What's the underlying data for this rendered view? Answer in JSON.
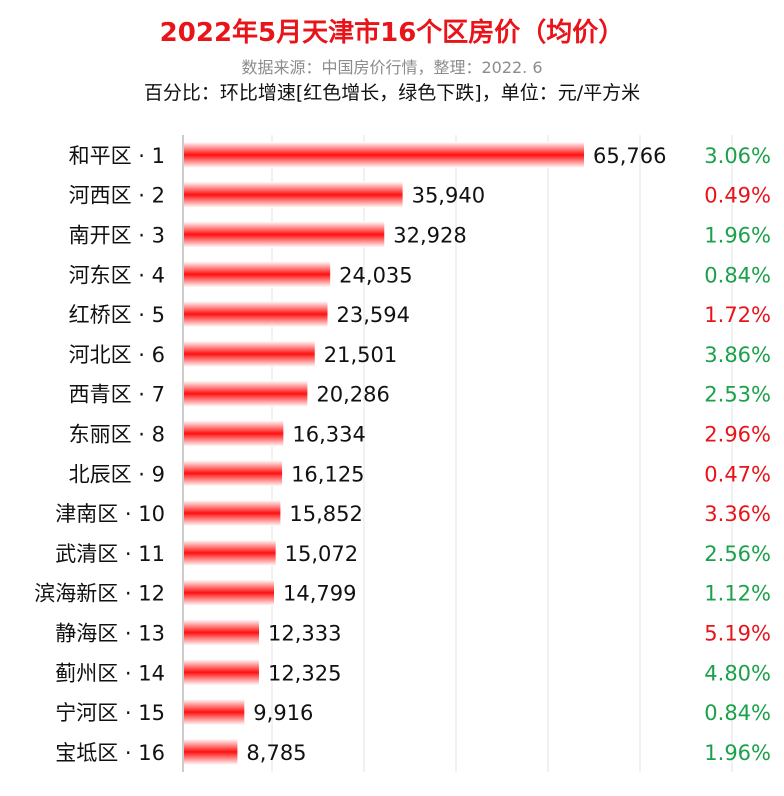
{
  "header": {
    "title": "2022年5月天津市16个区房价（均价）",
    "source": "数据来源：中国房价行情，整理：2022. 6",
    "note": "百分比：环比增速[红色增长，绿色下跌]，单位：元/平方米"
  },
  "colors": {
    "up": "#e8141a",
    "down": "#1aa14a",
    "bar": "#ff1a1a",
    "text": "#111111"
  },
  "chart_data": {
    "type": "bar",
    "orientation": "horizontal",
    "title": "2022年5月天津市16个区房价（均价）",
    "unit": "元/平方米",
    "grid": true,
    "categories": [
      "和平区 · 1",
      "河西区 · 2",
      "南开区 · 3",
      "河东区 · 4",
      "红桥区 · 5",
      "河北区 · 6",
      "西青区 · 7",
      "东丽区 · 8",
      "北辰区 · 9",
      "津南区 · 10",
      "武清区 · 11",
      "滨海新区 · 12",
      "静海区 · 13",
      "蓟州区 · 14",
      "宁河区 · 15",
      "宝坻区 · 16"
    ],
    "values": [
      65766,
      35940,
      32928,
      24035,
      23594,
      21501,
      20286,
      16334,
      16125,
      15852,
      15072,
      14799,
      12333,
      12325,
      9916,
      8785
    ],
    "value_labels": [
      "65,766",
      "35,940",
      "32,928",
      "24,035",
      "23,594",
      "21,501",
      "20,286",
      "16,334",
      "16,125",
      "15,852",
      "15,072",
      "14,799",
      "12,333",
      "12,325",
      "9,916",
      "8,785"
    ],
    "change_labels": [
      "3.06%",
      "0.49%",
      "1.96%",
      "0.84%",
      "1.72%",
      "3.86%",
      "2.53%",
      "2.96%",
      "0.47%",
      "3.36%",
      "2.56%",
      "1.12%",
      "5.19%",
      "4.80%",
      "0.84%",
      "1.96%"
    ],
    "change_direction": [
      "down",
      "up",
      "down",
      "down",
      "up",
      "down",
      "down",
      "up",
      "up",
      "up",
      "down",
      "down",
      "up",
      "down",
      "down",
      "down"
    ],
    "xlim": [
      0,
      65766
    ]
  }
}
